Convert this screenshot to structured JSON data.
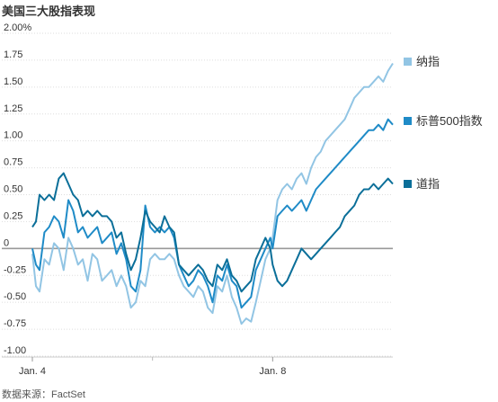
{
  "title": "美国三大股指表现",
  "source": "数据来源：FactSet",
  "colors": {
    "nasdaq": "#92c5e4",
    "sp500": "#1f8bc7",
    "dow": "#0b6f99",
    "zero_line": "#999999",
    "grid": "#dddddd"
  },
  "chart_data": {
    "type": "line",
    "title": "美国三大股指表现",
    "xlabel": "",
    "ylabel": "",
    "ylim": [
      -1.0,
      2.0
    ],
    "grid": true,
    "legend_placement": "right",
    "y_ticks": [
      {
        "value": 2.0,
        "label": "2.00%"
      },
      {
        "value": 1.75,
        "label": "1.75"
      },
      {
        "value": 1.5,
        "label": "1.50"
      },
      {
        "value": 1.25,
        "label": "1.25"
      },
      {
        "value": 1.0,
        "label": "1.00"
      },
      {
        "value": 0.75,
        "label": "0.75"
      },
      {
        "value": 0.5,
        "label": "0.50"
      },
      {
        "value": 0.25,
        "label": "0.25"
      },
      {
        "value": 0.0,
        "label": "0"
      },
      {
        "value": -0.25,
        "label": "-0.25"
      },
      {
        "value": -0.5,
        "label": "-0.50"
      },
      {
        "value": -0.75,
        "label": "-0.75"
      },
      {
        "value": -1.0,
        "label": "-1.00"
      }
    ],
    "x_ticks": [
      {
        "value": 0,
        "label": "Jan. 4"
      },
      {
        "value": 2,
        "label": "Jan. 8"
      }
    ],
    "x_range": [
      0,
      3
    ],
    "series": [
      {
        "name": "纳指",
        "color": "#92c5e4",
        "x": [
          0,
          0.03,
          0.06,
          0.1,
          0.14,
          0.18,
          0.22,
          0.26,
          0.3,
          0.34,
          0.38,
          0.42,
          0.46,
          0.5,
          0.54,
          0.58,
          0.62,
          0.66,
          0.7,
          0.74,
          0.78,
          0.82,
          0.86,
          0.9,
          0.94,
          0.98,
          1.02,
          1.06,
          1.1,
          1.14,
          1.18,
          1.22,
          1.26,
          1.3,
          1.34,
          1.38,
          1.42,
          1.46,
          1.5,
          1.54,
          1.58,
          1.62,
          1.66,
          1.7,
          1.74,
          1.78,
          1.82,
          1.86,
          1.9,
          1.94,
          1.98,
          2.0,
          2.04,
          2.08,
          2.12,
          2.16,
          2.2,
          2.24,
          2.28,
          2.32,
          2.36,
          2.4,
          2.44,
          2.48,
          2.52,
          2.56,
          2.6,
          2.64,
          2.68,
          2.72,
          2.76,
          2.8,
          2.84,
          2.88,
          2.92,
          2.96,
          3.0
        ],
        "values": [
          -0.05,
          -0.35,
          -0.4,
          -0.1,
          -0.15,
          0.05,
          0.0,
          -0.2,
          0.1,
          0.0,
          -0.15,
          -0.1,
          -0.3,
          -0.05,
          -0.1,
          -0.3,
          -0.25,
          -0.2,
          -0.35,
          -0.25,
          -0.35,
          -0.55,
          -0.5,
          -0.3,
          -0.35,
          -0.1,
          -0.05,
          -0.1,
          -0.1,
          -0.05,
          -0.1,
          -0.25,
          -0.35,
          -0.4,
          -0.45,
          -0.35,
          -0.4,
          -0.55,
          -0.6,
          -0.35,
          -0.4,
          -0.25,
          -0.45,
          -0.55,
          -0.7,
          -0.65,
          -0.68,
          -0.5,
          -0.3,
          -0.1,
          0.0,
          0.1,
          0.45,
          0.55,
          0.6,
          0.55,
          0.65,
          0.7,
          0.6,
          0.75,
          0.85,
          0.9,
          1.0,
          1.05,
          1.1,
          1.15,
          1.2,
          1.3,
          1.4,
          1.45,
          1.5,
          1.5,
          1.55,
          1.6,
          1.55,
          1.65,
          1.72
        ]
      },
      {
        "name": "标普500指数",
        "color": "#1f8bc7",
        "x": [
          0,
          0.03,
          0.06,
          0.1,
          0.14,
          0.18,
          0.22,
          0.26,
          0.3,
          0.34,
          0.38,
          0.42,
          0.46,
          0.5,
          0.54,
          0.58,
          0.62,
          0.66,
          0.7,
          0.74,
          0.78,
          0.82,
          0.86,
          0.9,
          0.94,
          0.98,
          1.02,
          1.06,
          1.1,
          1.14,
          1.18,
          1.22,
          1.26,
          1.3,
          1.34,
          1.38,
          1.42,
          1.46,
          1.5,
          1.54,
          1.58,
          1.62,
          1.66,
          1.7,
          1.74,
          1.78,
          1.82,
          1.86,
          1.9,
          1.94,
          1.98,
          2.0,
          2.04,
          2.08,
          2.12,
          2.16,
          2.2,
          2.24,
          2.28,
          2.32,
          2.36,
          2.4,
          2.44,
          2.48,
          2.52,
          2.56,
          2.6,
          2.64,
          2.68,
          2.72,
          2.76,
          2.8,
          2.84,
          2.88,
          2.92,
          2.96,
          3.0
        ],
        "values": [
          0.0,
          -0.15,
          -0.2,
          0.15,
          0.2,
          0.3,
          0.25,
          0.1,
          0.45,
          0.35,
          0.15,
          0.2,
          0.1,
          0.15,
          0.2,
          0.05,
          0.1,
          0.15,
          -0.05,
          0.05,
          -0.1,
          -0.35,
          -0.4,
          -0.2,
          0.4,
          0.2,
          0.15,
          0.2,
          0.15,
          0.2,
          0.1,
          -0.15,
          -0.25,
          -0.35,
          -0.3,
          -0.2,
          -0.25,
          -0.35,
          -0.5,
          -0.25,
          -0.3,
          -0.15,
          -0.3,
          -0.35,
          -0.55,
          -0.5,
          -0.45,
          -0.2,
          -0.1,
          0.0,
          0.1,
          0.0,
          0.3,
          0.35,
          0.4,
          0.35,
          0.4,
          0.45,
          0.35,
          0.45,
          0.55,
          0.6,
          0.65,
          0.7,
          0.75,
          0.8,
          0.85,
          0.9,
          0.95,
          1.0,
          1.05,
          1.1,
          1.1,
          1.15,
          1.1,
          1.2,
          1.15
        ]
      },
      {
        "name": "道指",
        "color": "#0b6f99",
        "x": [
          0,
          0.03,
          0.06,
          0.1,
          0.14,
          0.18,
          0.22,
          0.26,
          0.3,
          0.34,
          0.38,
          0.42,
          0.46,
          0.5,
          0.54,
          0.58,
          0.62,
          0.66,
          0.7,
          0.74,
          0.78,
          0.82,
          0.86,
          0.9,
          0.94,
          0.98,
          1.02,
          1.06,
          1.1,
          1.14,
          1.18,
          1.22,
          1.26,
          1.3,
          1.34,
          1.38,
          1.42,
          1.46,
          1.5,
          1.54,
          1.58,
          1.62,
          1.66,
          1.7,
          1.74,
          1.78,
          1.82,
          1.86,
          1.9,
          1.94,
          1.98,
          2.0,
          2.04,
          2.08,
          2.12,
          2.16,
          2.2,
          2.24,
          2.28,
          2.32,
          2.36,
          2.4,
          2.44,
          2.48,
          2.52,
          2.56,
          2.6,
          2.64,
          2.68,
          2.72,
          2.76,
          2.8,
          2.84,
          2.88,
          2.92,
          2.96,
          3.0
        ],
        "values": [
          0.2,
          0.25,
          0.5,
          0.45,
          0.5,
          0.45,
          0.65,
          0.7,
          0.6,
          0.5,
          0.45,
          0.3,
          0.35,
          0.3,
          0.35,
          0.3,
          0.3,
          0.25,
          0.1,
          0.15,
          -0.05,
          -0.2,
          -0.1,
          0.1,
          0.35,
          0.25,
          0.2,
          0.15,
          0.3,
          0.2,
          0.15,
          -0.15,
          -0.2,
          -0.25,
          -0.2,
          -0.15,
          -0.2,
          -0.3,
          -0.35,
          -0.15,
          -0.2,
          -0.1,
          -0.25,
          -0.3,
          -0.4,
          -0.35,
          -0.3,
          -0.1,
          0.0,
          0.1,
          0.0,
          -0.15,
          -0.3,
          -0.35,
          -0.3,
          -0.2,
          -0.1,
          0.0,
          -0.05,
          -0.1,
          -0.05,
          0.0,
          0.05,
          0.1,
          0.15,
          0.2,
          0.3,
          0.35,
          0.4,
          0.5,
          0.55,
          0.55,
          0.6,
          0.55,
          0.6,
          0.65,
          0.6
        ]
      }
    ]
  }
}
